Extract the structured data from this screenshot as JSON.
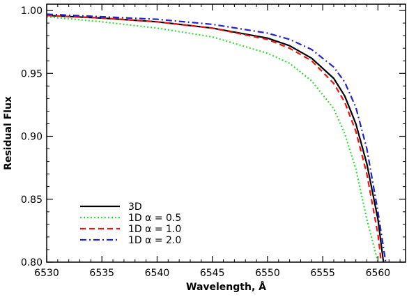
{
  "chart_data": {
    "type": "line",
    "xlabel": "Wavelength, Å",
    "ylabel": "Residual Flux",
    "xlim": [
      6530,
      6562.5
    ],
    "ylim": [
      0.8,
      1.005
    ],
    "x_ticks": [
      6530,
      6535,
      6540,
      6545,
      6550,
      6555,
      6560
    ],
    "x_tick_labels": [
      "6530",
      "6535",
      "6540",
      "6545",
      "6550",
      "6555",
      "6560"
    ],
    "y_ticks": [
      0.8,
      0.85,
      0.9,
      0.95,
      1.0
    ],
    "y_tick_labels": [
      "0.80",
      "0.85",
      "0.90",
      "0.95",
      "1.00"
    ],
    "grid": false,
    "legend_position": "bottom-left",
    "series": [
      {
        "name": "3D",
        "color": "#000000",
        "dash": "solid",
        "x": [
          6530,
          6535,
          6540,
          6545,
          6550,
          6552,
          6554,
          6556,
          6557,
          6558,
          6559,
          6560,
          6560.5
        ],
        "y": [
          0.996,
          0.994,
          0.991,
          0.986,
          0.978,
          0.972,
          0.962,
          0.946,
          0.932,
          0.91,
          0.878,
          0.834,
          0.8
        ]
      },
      {
        "name": "1D α = 0.5",
        "color": "#33dd33",
        "dash": "dotted",
        "x": [
          6530,
          6535,
          6540,
          6545,
          6550,
          6552,
          6554,
          6556,
          6557,
          6558,
          6559,
          6560
        ],
        "y": [
          0.995,
          0.991,
          0.986,
          0.979,
          0.966,
          0.958,
          0.944,
          0.922,
          0.902,
          0.874,
          0.834,
          0.8
        ]
      },
      {
        "name": "1D α = 1.0",
        "color": "#ee1111",
        "dash": "dashed",
        "x": [
          6530,
          6535,
          6540,
          6545,
          6550,
          6552,
          6554,
          6556,
          6557,
          6558,
          6559,
          6560,
          6560.3
        ],
        "y": [
          0.996,
          0.994,
          0.991,
          0.986,
          0.977,
          0.97,
          0.96,
          0.942,
          0.927,
          0.904,
          0.87,
          0.822,
          0.8
        ]
      },
      {
        "name": "1D α = 2.0",
        "color": "#2222cc",
        "dash": "dashdot",
        "x": [
          6530,
          6535,
          6540,
          6545,
          6550,
          6552,
          6554,
          6556,
          6557,
          6558,
          6559,
          6560,
          6560.7
        ],
        "y": [
          0.997,
          0.995,
          0.993,
          0.989,
          0.982,
          0.977,
          0.969,
          0.955,
          0.943,
          0.923,
          0.89,
          0.84,
          0.8
        ]
      }
    ],
    "legend": [
      {
        "label": "3D"
      },
      {
        "label": "1D α = 0.5"
      },
      {
        "label": "1D α = 1.0"
      },
      {
        "label": "1D α = 2.0"
      }
    ]
  }
}
